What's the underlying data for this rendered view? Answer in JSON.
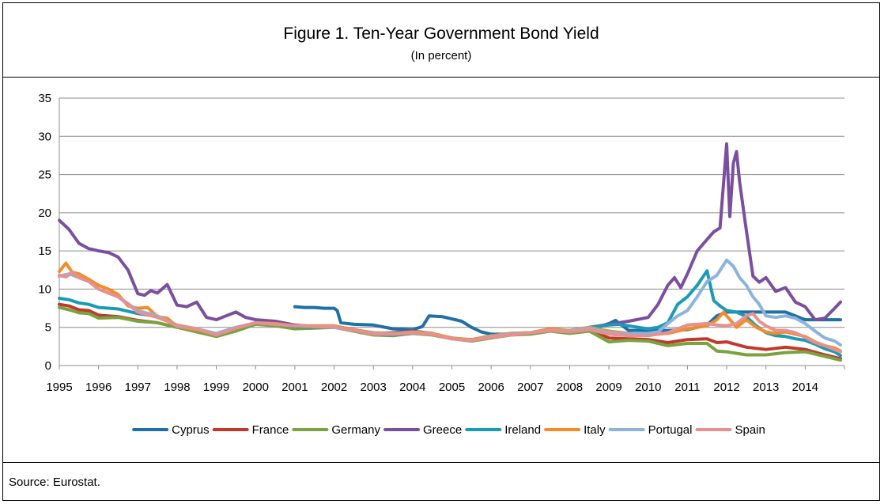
{
  "figure": {
    "title": "Figure 1. Ten-Year Government Bond Yield",
    "subtitle": "(In percent)",
    "source": "Source: Eurostat."
  },
  "chart_data": {
    "type": "line",
    "title": "Figure 1. Ten-Year Government Bond Yield",
    "subtitle": "(In percent)",
    "xlabel": "",
    "ylabel": "",
    "xlim": [
      1995.0,
      2015.0
    ],
    "ylim": [
      0,
      35
    ],
    "y_ticks": [
      0,
      5,
      10,
      15,
      20,
      25,
      30,
      35
    ],
    "x_tick_labels": [
      "1995",
      "1996",
      "1997",
      "1998",
      "1999",
      "2000",
      "2001",
      "2002",
      "2003",
      "2004",
      "2005",
      "2006",
      "2007",
      "2008",
      "2009",
      "2010",
      "2011",
      "2012",
      "2013",
      "2014"
    ],
    "grid": "horizontal",
    "legend_position": "bottom",
    "series": [
      {
        "name": "Cyprus",
        "color": "#1f6fa8",
        "x": [
          2001.0,
          2001.25,
          2001.5,
          2001.75,
          2002.0,
          2002.08,
          2002.17,
          2002.5,
          2003.0,
          2003.5,
          2004.0,
          2004.25,
          2004.42,
          2004.75,
          2005.0,
          2005.25,
          2005.5,
          2005.75,
          2006.0,
          2006.5,
          2007.0,
          2007.5,
          2008.0,
          2008.5,
          2009.0,
          2009.17,
          2009.5,
          2010.0,
          2010.5,
          2011.0,
          2011.5,
          2011.75,
          2012.0,
          2012.5,
          2013.0,
          2013.5,
          2014.0,
          2014.5,
          2014.9
        ],
        "y": [
          7.7,
          7.6,
          7.6,
          7.5,
          7.5,
          7.2,
          5.6,
          5.4,
          5.3,
          4.8,
          4.7,
          5.1,
          6.5,
          6.4,
          6.1,
          5.8,
          5.0,
          4.4,
          4.1,
          4.1,
          4.3,
          4.6,
          4.6,
          4.6,
          5.5,
          5.9,
          4.6,
          4.6,
          4.6,
          4.7,
          5.3,
          6.5,
          7.0,
          7.0,
          7.0,
          7.0,
          6.0,
          6.0,
          6.0
        ]
      },
      {
        "name": "France",
        "color": "#c0392b",
        "x": [
          1995.0,
          1995.25,
          1995.5,
          1995.75,
          1996.0,
          1996.5,
          1997.0,
          1997.5,
          1998.0,
          1998.5,
          1999.0,
          1999.5,
          2000.0,
          2000.5,
          2001.0,
          2001.5,
          2002.0,
          2002.5,
          2003.0,
          2003.5,
          2004.0,
          2004.5,
          2005.0,
          2005.5,
          2006.0,
          2006.5,
          2007.0,
          2007.5,
          2008.0,
          2008.5,
          2009.0,
          2009.5,
          2010.0,
          2010.5,
          2011.0,
          2011.5,
          2011.75,
          2012.0,
          2012.5,
          2013.0,
          2013.5,
          2014.0,
          2014.5,
          2014.9
        ],
        "y": [
          8.0,
          7.8,
          7.3,
          7.2,
          6.6,
          6.4,
          5.9,
          5.6,
          5.0,
          4.6,
          4.0,
          4.6,
          5.5,
          5.3,
          5.1,
          5.0,
          5.0,
          4.6,
          4.1,
          4.0,
          4.2,
          4.1,
          3.6,
          3.3,
          3.7,
          4.0,
          4.2,
          4.6,
          4.4,
          4.7,
          3.6,
          3.5,
          3.4,
          3.0,
          3.4,
          3.5,
          3.0,
          3.1,
          2.4,
          2.1,
          2.4,
          2.1,
          1.4,
          0.9
        ]
      },
      {
        "name": "Germany",
        "color": "#7aa33f",
        "x": [
          1995.0,
          1995.25,
          1995.5,
          1995.75,
          1996.0,
          1996.5,
          1997.0,
          1997.5,
          1998.0,
          1998.5,
          1999.0,
          1999.5,
          2000.0,
          2000.5,
          2001.0,
          2001.5,
          2002.0,
          2002.5,
          2003.0,
          2003.5,
          2004.0,
          2004.5,
          2005.0,
          2005.5,
          2006.0,
          2006.5,
          2007.0,
          2007.5,
          2008.0,
          2008.5,
          2008.75,
          2009.0,
          2009.5,
          2010.0,
          2010.5,
          2011.0,
          2011.5,
          2011.75,
          2012.0,
          2012.5,
          2013.0,
          2013.5,
          2014.0,
          2014.5,
          2014.9
        ],
        "y": [
          7.6,
          7.3,
          6.9,
          6.8,
          6.2,
          6.3,
          5.8,
          5.6,
          5.0,
          4.4,
          3.8,
          4.5,
          5.4,
          5.2,
          4.8,
          4.9,
          5.0,
          4.5,
          4.0,
          3.9,
          4.2,
          4.0,
          3.5,
          3.2,
          3.6,
          4.0,
          4.1,
          4.5,
          4.2,
          4.5,
          3.8,
          3.1,
          3.3,
          3.2,
          2.6,
          2.9,
          2.9,
          1.9,
          1.8,
          1.4,
          1.4,
          1.7,
          1.8,
          1.2,
          0.7
        ]
      },
      {
        "name": "Greece",
        "color": "#7b4f9e",
        "x": [
          1995.0,
          1995.25,
          1995.5,
          1995.75,
          1996.0,
          1996.25,
          1996.5,
          1996.75,
          1997.0,
          1997.17,
          1997.33,
          1997.5,
          1997.75,
          1998.0,
          1998.25,
          1998.5,
          1998.75,
          1999.0,
          1999.25,
          1999.5,
          1999.75,
          2000.0,
          2000.5,
          2001.0,
          2001.5,
          2002.0,
          2002.5,
          2003.0,
          2003.5,
          2004.0,
          2004.5,
          2005.0,
          2005.5,
          2006.0,
          2006.5,
          2007.0,
          2007.5,
          2008.0,
          2008.5,
          2009.0,
          2009.5,
          2010.0,
          2010.25,
          2010.5,
          2010.67,
          2010.83,
          2011.0,
          2011.25,
          2011.5,
          2011.67,
          2011.83,
          2012.0,
          2012.08,
          2012.17,
          2012.25,
          2012.33,
          2012.5,
          2012.67,
          2012.83,
          2013.0,
          2013.25,
          2013.5,
          2013.75,
          2014.0,
          2014.25,
          2014.5,
          2014.75,
          2014.9
        ],
        "y": [
          19.0,
          17.8,
          16.0,
          15.3,
          15.0,
          14.8,
          14.2,
          12.5,
          9.4,
          9.2,
          9.8,
          9.5,
          10.6,
          7.9,
          7.7,
          8.3,
          6.3,
          6.0,
          6.5,
          7.0,
          6.3,
          6.0,
          5.8,
          5.3,
          5.1,
          5.1,
          4.7,
          4.2,
          4.3,
          4.5,
          4.2,
          3.5,
          3.4,
          3.8,
          4.2,
          4.3,
          4.6,
          4.5,
          5.0,
          5.4,
          5.8,
          6.3,
          8.0,
          10.5,
          11.5,
          10.2,
          12.0,
          15.0,
          16.5,
          17.5,
          18.0,
          29.0,
          19.5,
          26.5,
          28.0,
          24.0,
          17.7,
          11.7,
          10.9,
          11.5,
          9.7,
          10.2,
          8.3,
          7.7,
          6.0,
          6.2,
          7.5,
          8.3
        ]
      },
      {
        "name": "Ireland",
        "color": "#1a9bb5",
        "x": [
          1995.0,
          1995.25,
          1995.5,
          1995.75,
          1996.0,
          1996.5,
          1997.0,
          1997.5,
          1998.0,
          1998.5,
          1999.0,
          1999.5,
          2000.0,
          2000.5,
          2001.0,
          2001.5,
          2002.0,
          2002.5,
          2003.0,
          2003.5,
          2004.0,
          2004.5,
          2005.0,
          2005.5,
          2006.0,
          2006.5,
          2007.0,
          2007.5,
          2008.0,
          2008.5,
          2009.0,
          2009.25,
          2009.5,
          2010.0,
          2010.25,
          2010.5,
          2010.75,
          2011.0,
          2011.25,
          2011.5,
          2011.67,
          2011.83,
          2012.0,
          2012.25,
          2012.5,
          2012.75,
          2013.0,
          2013.25,
          2013.5,
          2013.75,
          2014.0,
          2014.25,
          2014.5,
          2014.75,
          2014.9
        ],
        "y": [
          8.8,
          8.6,
          8.2,
          8.0,
          7.6,
          7.4,
          6.8,
          6.4,
          5.3,
          4.8,
          4.1,
          4.9,
          5.6,
          5.4,
          5.1,
          5.0,
          5.1,
          4.6,
          4.1,
          4.0,
          4.3,
          4.1,
          3.6,
          3.3,
          3.8,
          4.1,
          4.3,
          4.6,
          4.6,
          5.0,
          5.3,
          5.4,
          5.2,
          4.8,
          5.0,
          5.6,
          8.0,
          9.0,
          10.5,
          12.4,
          8.5,
          7.8,
          7.2,
          7.0,
          6.4,
          5.2,
          4.3,
          3.9,
          3.8,
          3.5,
          3.3,
          2.8,
          2.2,
          1.8,
          1.3
        ]
      },
      {
        "name": "Italy",
        "color": "#f28c28",
        "x": [
          1995.0,
          1995.17,
          1995.33,
          1995.5,
          1995.75,
          1996.0,
          1996.25,
          1996.5,
          1996.75,
          1997.0,
          1997.25,
          1997.5,
          1997.75,
          1998.0,
          1998.5,
          1999.0,
          1999.5,
          2000.0,
          2000.5,
          2001.0,
          2001.5,
          2002.0,
          2002.5,
          2003.0,
          2003.5,
          2004.0,
          2004.5,
          2005.0,
          2005.5,
          2006.0,
          2006.5,
          2007.0,
          2007.5,
          2008.0,
          2008.5,
          2009.0,
          2009.5,
          2010.0,
          2010.5,
          2011.0,
          2011.5,
          2011.75,
          2011.92,
          2012.0,
          2012.25,
          2012.5,
          2012.75,
          2013.0,
          2013.25,
          2013.5,
          2013.75,
          2014.0,
          2014.25,
          2014.5,
          2014.75,
          2014.9
        ],
        "y": [
          12.3,
          13.4,
          12.2,
          12.0,
          11.3,
          10.5,
          10.0,
          9.3,
          7.8,
          7.5,
          7.6,
          6.4,
          6.2,
          5.1,
          4.7,
          4.1,
          4.9,
          5.6,
          5.5,
          5.2,
          5.2,
          5.2,
          4.7,
          4.3,
          4.2,
          4.4,
          4.2,
          3.6,
          3.4,
          3.9,
          4.2,
          4.3,
          4.8,
          4.6,
          5.0,
          4.5,
          4.2,
          4.0,
          4.2,
          4.8,
          5.2,
          6.0,
          7.0,
          6.5,
          5.0,
          6.0,
          5.0,
          4.4,
          4.2,
          4.4,
          4.1,
          3.8,
          3.1,
          2.6,
          2.3,
          1.9
        ]
      },
      {
        "name": "Portugal",
        "color": "#8db3dd",
        "x": [
          1995.0,
          1995.25,
          1995.5,
          1995.75,
          1996.0,
          1996.5,
          1997.0,
          1997.5,
          1998.0,
          1998.5,
          1999.0,
          1999.5,
          2000.0,
          2000.5,
          2001.0,
          2001.5,
          2002.0,
          2002.5,
          2003.0,
          2003.5,
          2004.0,
          2004.5,
          2005.0,
          2005.5,
          2006.0,
          2006.5,
          2007.0,
          2007.5,
          2008.0,
          2008.5,
          2009.0,
          2009.5,
          2010.0,
          2010.25,
          2010.5,
          2010.75,
          2011.0,
          2011.25,
          2011.5,
          2011.75,
          2012.0,
          2012.17,
          2012.33,
          2012.5,
          2012.67,
          2012.83,
          2013.0,
          2013.25,
          2013.5,
          2013.75,
          2014.0,
          2014.25,
          2014.5,
          2014.75,
          2014.9
        ],
        "y": [
          11.7,
          12.0,
          11.5,
          11.0,
          10.0,
          9.0,
          7.2,
          6.5,
          5.2,
          4.8,
          4.2,
          5.0,
          5.6,
          5.4,
          5.2,
          5.1,
          5.0,
          4.6,
          4.2,
          4.1,
          4.3,
          4.1,
          3.5,
          3.3,
          3.8,
          4.1,
          4.3,
          4.6,
          4.5,
          4.9,
          4.3,
          4.1,
          4.2,
          4.4,
          5.5,
          6.5,
          7.2,
          9.0,
          11.0,
          11.8,
          13.8,
          13.0,
          11.5,
          10.5,
          9.0,
          8.0,
          6.5,
          6.3,
          6.5,
          6.2,
          5.5,
          4.5,
          3.6,
          3.2,
          2.7
        ]
      },
      {
        "name": "Spain",
        "color": "#e8908f",
        "x": [
          1995.0,
          1995.17,
          1995.33,
          1995.5,
          1995.75,
          1996.0,
          1996.5,
          1997.0,
          1997.5,
          1998.0,
          1998.5,
          1999.0,
          1999.5,
          2000.0,
          2000.5,
          2001.0,
          2001.5,
          2002.0,
          2002.5,
          2003.0,
          2003.5,
          2004.0,
          2004.5,
          2005.0,
          2005.5,
          2006.0,
          2006.5,
          2007.0,
          2007.5,
          2008.0,
          2008.5,
          2009.0,
          2009.5,
          2010.0,
          2010.5,
          2011.0,
          2011.5,
          2011.75,
          2012.0,
          2012.25,
          2012.5,
          2012.67,
          2012.83,
          2013.0,
          2013.25,
          2013.5,
          2013.75,
          2014.0,
          2014.25,
          2014.5,
          2014.75,
          2014.9
        ],
        "y": [
          11.8,
          11.6,
          12.2,
          11.5,
          11.0,
          10.0,
          9.0,
          7.0,
          6.3,
          5.3,
          4.8,
          4.0,
          4.9,
          5.6,
          5.4,
          5.2,
          5.1,
          5.1,
          4.6,
          4.1,
          4.1,
          4.3,
          4.1,
          3.5,
          3.3,
          3.7,
          4.0,
          4.3,
          4.6,
          4.4,
          4.7,
          4.1,
          3.9,
          3.9,
          4.3,
          5.3,
          5.5,
          5.3,
          5.2,
          5.5,
          6.5,
          6.8,
          5.8,
          5.2,
          4.6,
          4.6,
          4.3,
          3.7,
          3.0,
          2.6,
          2.1,
          1.8
        ]
      }
    ]
  }
}
